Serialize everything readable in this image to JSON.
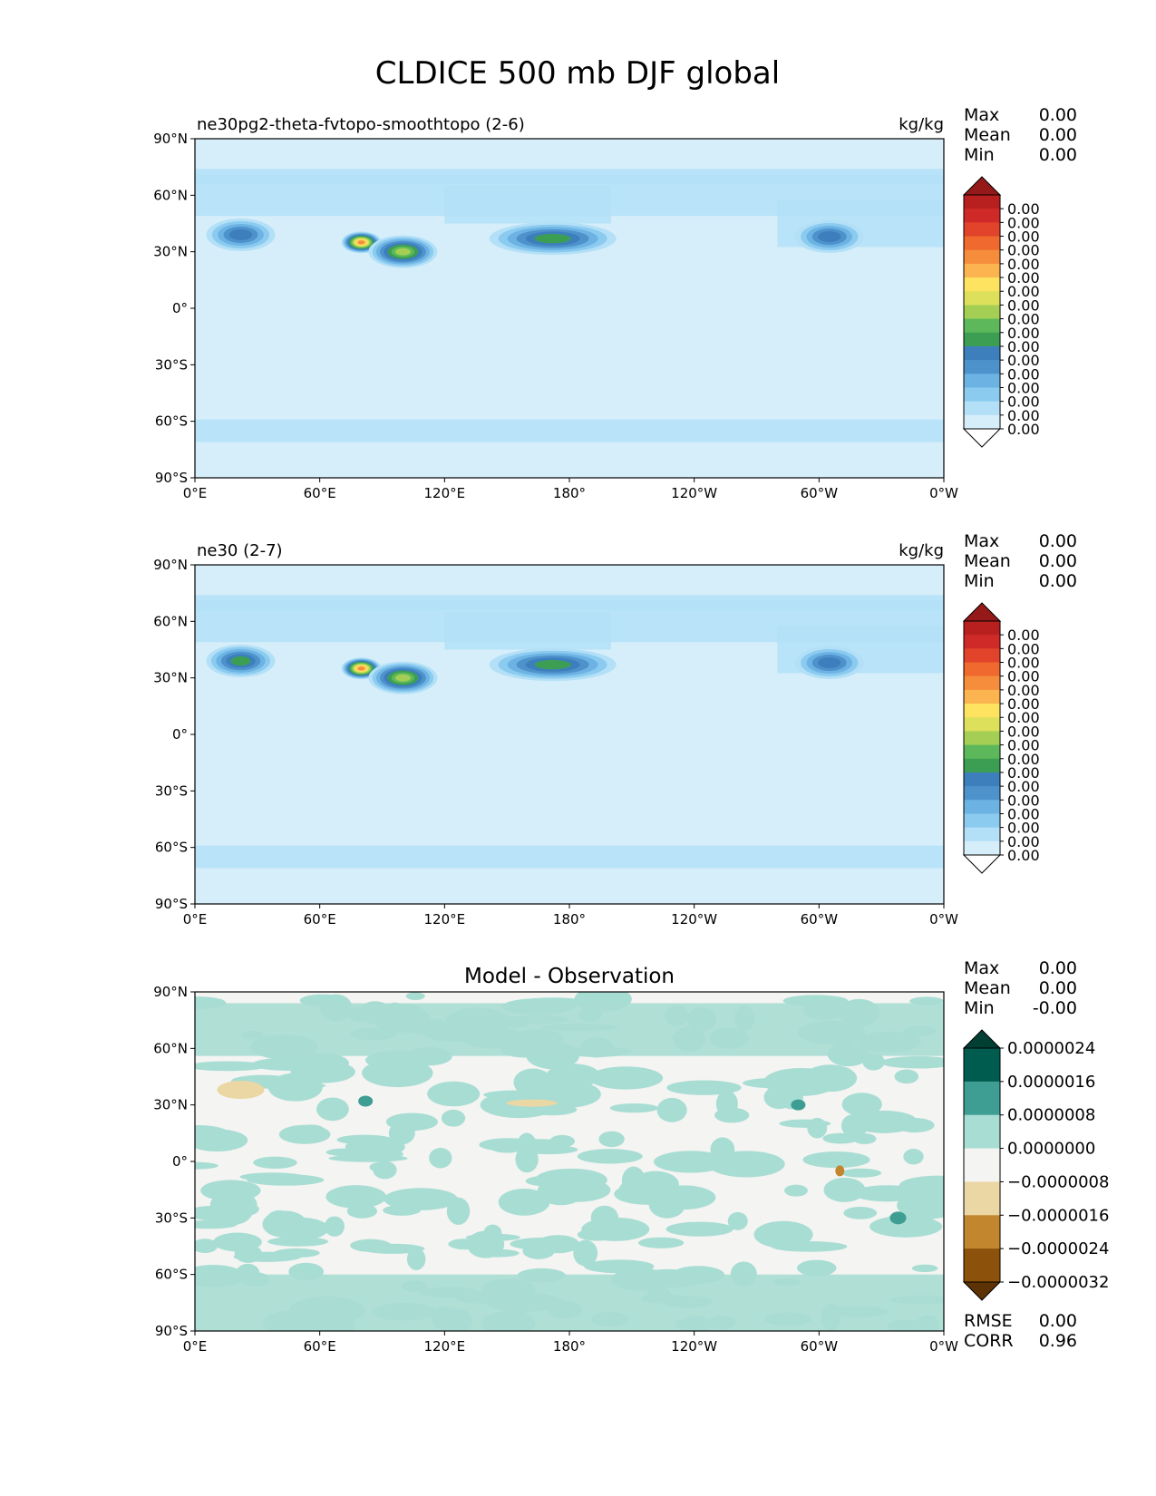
{
  "title": "CLDICE 500 mb DJF global",
  "chart_data": [
    {
      "type": "heatmap",
      "title": "ne30pg2-theta-fvtopo-smoothtopo (2-6)",
      "units": "kg/kg",
      "stats": [
        {
          "label": "Max",
          "value": "0.00"
        },
        {
          "label": "Mean",
          "value": "0.00"
        },
        {
          "label": "Min",
          "value": "0.00"
        }
      ],
      "colorbar": {
        "colors": [
          "#ffffff",
          "#d6eefa",
          "#b3e0f7",
          "#8ccbf0",
          "#6cb3e4",
          "#4e92cc",
          "#3d7fbd",
          "#3c9e52",
          "#5cb85a",
          "#a5cf54",
          "#dde05a",
          "#fde35f",
          "#fbb44f",
          "#f58d3c",
          "#f06a2f",
          "#e2432b",
          "#cf2a27",
          "#b8201f",
          "#951919"
        ],
        "labels": [
          "0.00",
          "0.00",
          "0.00",
          "0.00",
          "0.00",
          "0.00",
          "0.00",
          "0.00",
          "0.00",
          "0.00",
          "0.00",
          "0.00",
          "0.00",
          "0.00",
          "0.00",
          "0.00",
          "0.00"
        ],
        "extend": "both"
      },
      "xticks": [
        "0°E",
        "60°E",
        "120°E",
        "180°",
        "120°W",
        "60°W",
        "0°W"
      ],
      "yticks": [
        "90°N",
        "60°N",
        "30°N",
        "0°",
        "30°S",
        "60°S",
        "90°S"
      ],
      "features": [
        {
          "lon": 172,
          "lat": 37,
          "level": 6
        },
        {
          "lon": 80,
          "lat": 35,
          "level": 12
        },
        {
          "lon": 100,
          "lat": 30,
          "level": 8
        },
        {
          "lon": 305,
          "lat": 38,
          "level": 5
        },
        {
          "lon": 22,
          "lat": 39,
          "level": 5
        }
      ]
    },
    {
      "type": "heatmap",
      "title": "ne30 (2-7)",
      "units": "kg/kg",
      "stats": [
        {
          "label": "Max",
          "value": "0.00"
        },
        {
          "label": "Mean",
          "value": "0.00"
        },
        {
          "label": "Min",
          "value": "0.00"
        }
      ],
      "colorbar": {
        "colors": [
          "#ffffff",
          "#d6eefa",
          "#b3e0f7",
          "#8ccbf0",
          "#6cb3e4",
          "#4e92cc",
          "#3d7fbd",
          "#3c9e52",
          "#5cb85a",
          "#a5cf54",
          "#dde05a",
          "#fde35f",
          "#fbb44f",
          "#f58d3c",
          "#f06a2f",
          "#e2432b",
          "#cf2a27",
          "#b8201f",
          "#951919"
        ],
        "labels": [
          "0.00",
          "0.00",
          "0.00",
          "0.00",
          "0.00",
          "0.00",
          "0.00",
          "0.00",
          "0.00",
          "0.00",
          "0.00",
          "0.00",
          "0.00",
          "0.00",
          "0.00",
          "0.00",
          "0.00"
        ],
        "extend": "both"
      },
      "xticks": [
        "0°E",
        "60°E",
        "120°E",
        "180°",
        "120°W",
        "60°W",
        "0°W"
      ],
      "yticks": [
        "90°N",
        "60°N",
        "30°N",
        "0°",
        "30°S",
        "60°S",
        "90°S"
      ],
      "features": [
        {
          "lon": 172,
          "lat": 37,
          "level": 6
        },
        {
          "lon": 80,
          "lat": 35,
          "level": 12
        },
        {
          "lon": 100,
          "lat": 30,
          "level": 8
        },
        {
          "lon": 305,
          "lat": 38,
          "level": 5
        },
        {
          "lon": 22,
          "lat": 39,
          "level": 6
        }
      ]
    },
    {
      "type": "heatmap",
      "title": "Model - Observation",
      "units": "",
      "stats": [
        {
          "label": "Max",
          "value": "0.00"
        },
        {
          "label": "Mean",
          "value": "0.00"
        },
        {
          "label": "Min",
          "value": "-0.00"
        }
      ],
      "colorbar": {
        "colors": [
          "#5d3305",
          "#8c510a",
          "#c1862e",
          "#ebd7a3",
          "#f4f4f2",
          "#a8ddd3",
          "#3f9e93",
          "#015c50",
          "#013f35"
        ],
        "labels": [
          "0.0000024",
          "0.0000016",
          "0.0000008",
          "0.0000000",
          "−0.0000008",
          "−0.0000016",
          "−0.0000024",
          "−0.0000032"
        ],
        "extend": "both"
      },
      "xticks": [
        "0°E",
        "60°E",
        "120°E",
        "180°",
        "120°W",
        "60°W",
        "0°W"
      ],
      "yticks": [
        "90°N",
        "60°N",
        "30°N",
        "0°",
        "30°S",
        "60°S",
        "90°S"
      ],
      "footer": [
        {
          "label": "RMSE",
          "value": "0.00"
        },
        {
          "label": "CORR",
          "value": "0.96"
        }
      ]
    }
  ]
}
